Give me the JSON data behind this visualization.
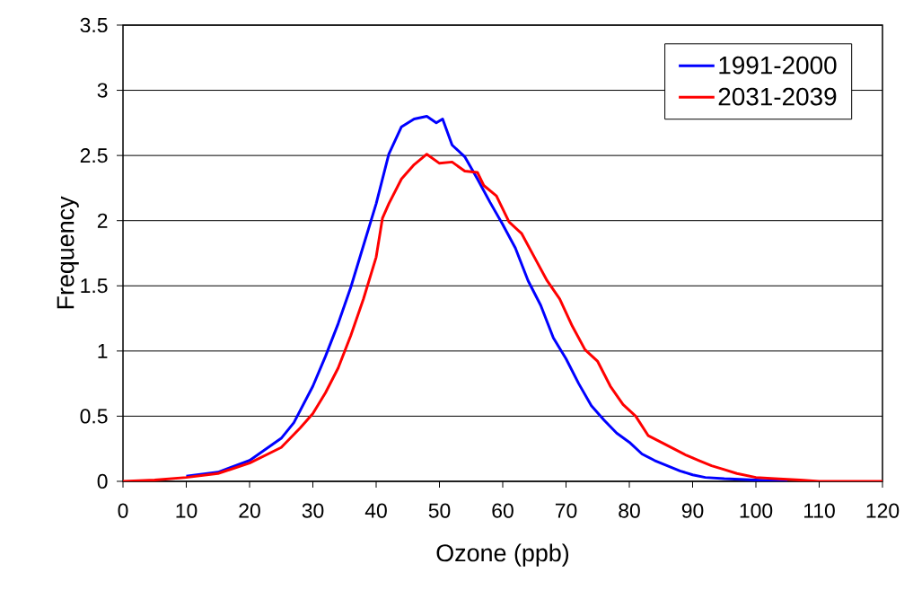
{
  "chart_data": {
    "type": "line",
    "xlabel": "Ozone (ppb)",
    "ylabel": "Frequency",
    "xlim": [
      0,
      120
    ],
    "xticks": [
      0,
      10,
      20,
      30,
      40,
      50,
      60,
      70,
      80,
      90,
      100,
      110,
      120
    ],
    "ylim": [
      0,
      3.5
    ],
    "yticks": [
      0,
      0.5,
      1,
      1.5,
      2,
      2.5,
      3,
      3.5
    ],
    "grid": "y",
    "legend": "top right",
    "marker": "none",
    "line_style": "solid",
    "series": [
      {
        "name": "1991-2000",
        "color": "#0000ff",
        "x": [
          10,
          15,
          20,
          25,
          27,
          30,
          32,
          34,
          36,
          38,
          40,
          42,
          44,
          46,
          48,
          49.5,
          50.5,
          52,
          54,
          56,
          58,
          60,
          62,
          64,
          66,
          68,
          70,
          72,
          74,
          76,
          78,
          80,
          82,
          84,
          86,
          88,
          90,
          92,
          95,
          100,
          105
        ],
        "values": [
          0.04,
          0.07,
          0.16,
          0.33,
          0.45,
          0.73,
          0.96,
          1.21,
          1.49,
          1.81,
          2.13,
          2.51,
          2.72,
          2.78,
          2.8,
          2.75,
          2.78,
          2.58,
          2.49,
          2.32,
          2.14,
          1.97,
          1.79,
          1.54,
          1.35,
          1.1,
          0.94,
          0.75,
          0.58,
          0.47,
          0.37,
          0.3,
          0.21,
          0.16,
          0.12,
          0.08,
          0.05,
          0.03,
          0.02,
          0.01,
          0
        ]
      },
      {
        "name": "2031-2039",
        "color": "#ff0000",
        "x": [
          0,
          5,
          10,
          15,
          20,
          25,
          28,
          30,
          32,
          34,
          36,
          38,
          40,
          41,
          42,
          44,
          46,
          48,
          50,
          52,
          54,
          56,
          57,
          59,
          61,
          63,
          65,
          67,
          69,
          71,
          73,
          75,
          77,
          79,
          81,
          83,
          85,
          87,
          89,
          91,
          93,
          95,
          97,
          100,
          103,
          107,
          110,
          120
        ],
        "values": [
          0,
          0.01,
          0.03,
          0.06,
          0.14,
          0.26,
          0.41,
          0.52,
          0.68,
          0.87,
          1.12,
          1.4,
          1.72,
          2.02,
          2.13,
          2.32,
          2.43,
          2.51,
          2.44,
          2.45,
          2.38,
          2.37,
          2.27,
          2.19,
          1.99,
          1.9,
          1.72,
          1.54,
          1.4,
          1.19,
          1.01,
          0.92,
          0.73,
          0.59,
          0.5,
          0.35,
          0.3,
          0.25,
          0.2,
          0.16,
          0.12,
          0.09,
          0.06,
          0.03,
          0.02,
          0.01,
          0,
          0
        ]
      }
    ]
  }
}
